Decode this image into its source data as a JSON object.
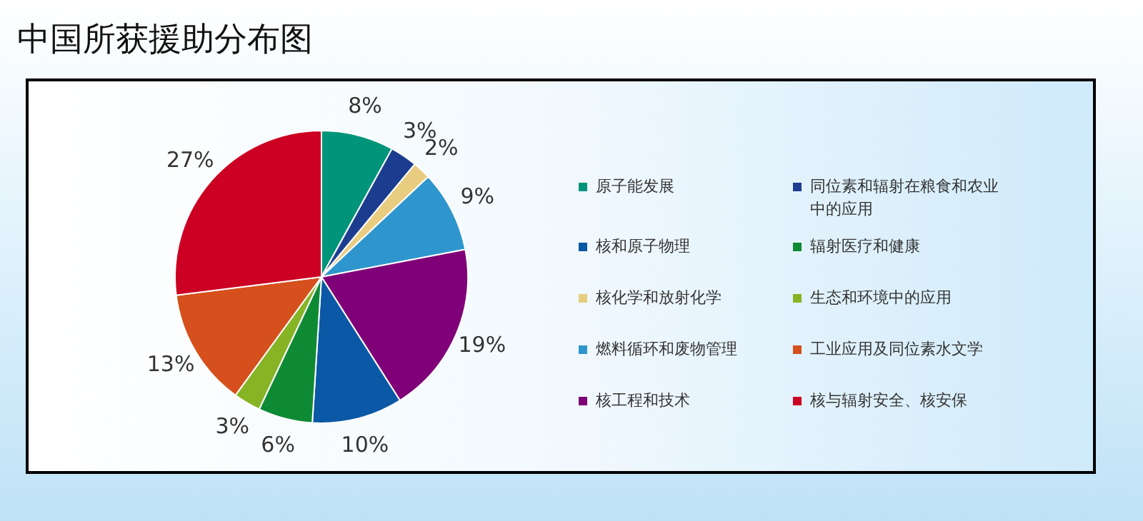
{
  "chart_data": {
    "type": "pie",
    "title": "中国所获援助分布图",
    "categories": [
      "原子能发展",
      "同位素和辐射在粮食和农业中的应用",
      "核化学和放射化学",
      "燃料循环和废物管理",
      "核工程和技术",
      "核和原子物理",
      "辐射医疗和健康",
      "生态和环境中的应用",
      "工业应用及同位素水文学",
      "核与辐射安全、核安保"
    ],
    "values": [
      8,
      3,
      2,
      9,
      19,
      10,
      6,
      3,
      13,
      27
    ],
    "colors": [
      "#00957a",
      "#1c3d8f",
      "#e8cc80",
      "#2e96cc",
      "#800078",
      "#0a58a6",
      "#0f8a34",
      "#86b424",
      "#d5501c",
      "#cc0022"
    ],
    "value_labels": [
      "8%",
      "3%",
      "2%",
      "9%",
      "19%",
      "10%",
      "6%",
      "3%",
      "13%",
      "27%"
    ],
    "legend": "right"
  }
}
